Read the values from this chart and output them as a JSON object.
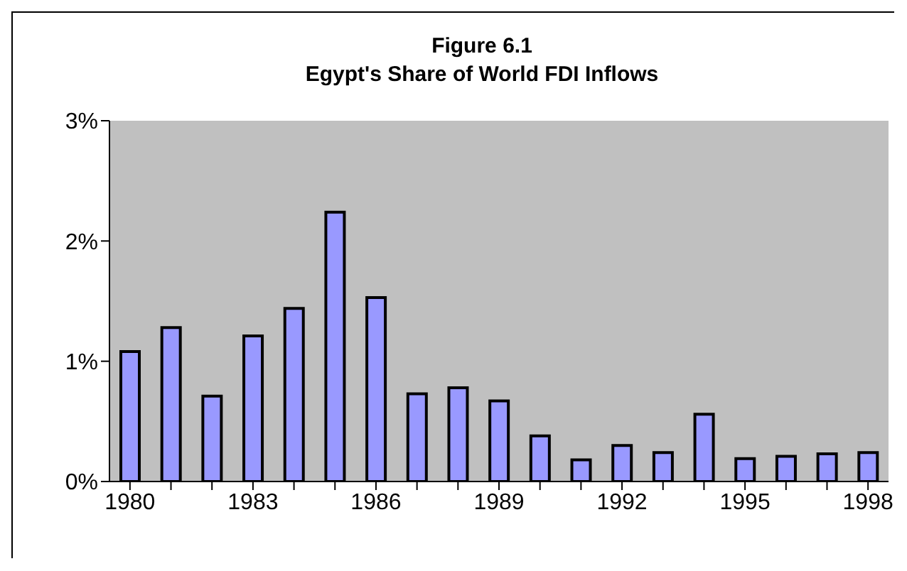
{
  "chart_data": {
    "type": "bar",
    "title": "Figure 6.1",
    "subtitle": "Egypt's Share of World FDI Inflows",
    "categories": [
      "1980",
      null,
      null,
      "1983",
      null,
      null,
      "1986",
      null,
      null,
      "1989",
      null,
      null,
      "1992",
      null,
      null,
      "1995",
      null,
      null,
      "1998"
    ],
    "values": [
      1.08,
      1.28,
      0.71,
      1.21,
      1.44,
      2.24,
      1.53,
      0.73,
      0.78,
      0.67,
      0.38,
      0.18,
      0.3,
      0.24,
      0.56,
      0.19,
      0.21,
      0.23,
      0.24
    ],
    "color": "#9999ff",
    "ylim": [
      0,
      3
    ],
    "yticks": [
      {
        "value": 0,
        "label": "0%"
      },
      {
        "value": 1,
        "label": "1%"
      },
      {
        "value": 2,
        "label": "2%"
      },
      {
        "value": 3,
        "label": "3%"
      }
    ],
    "grid": false,
    "legend": false
  }
}
